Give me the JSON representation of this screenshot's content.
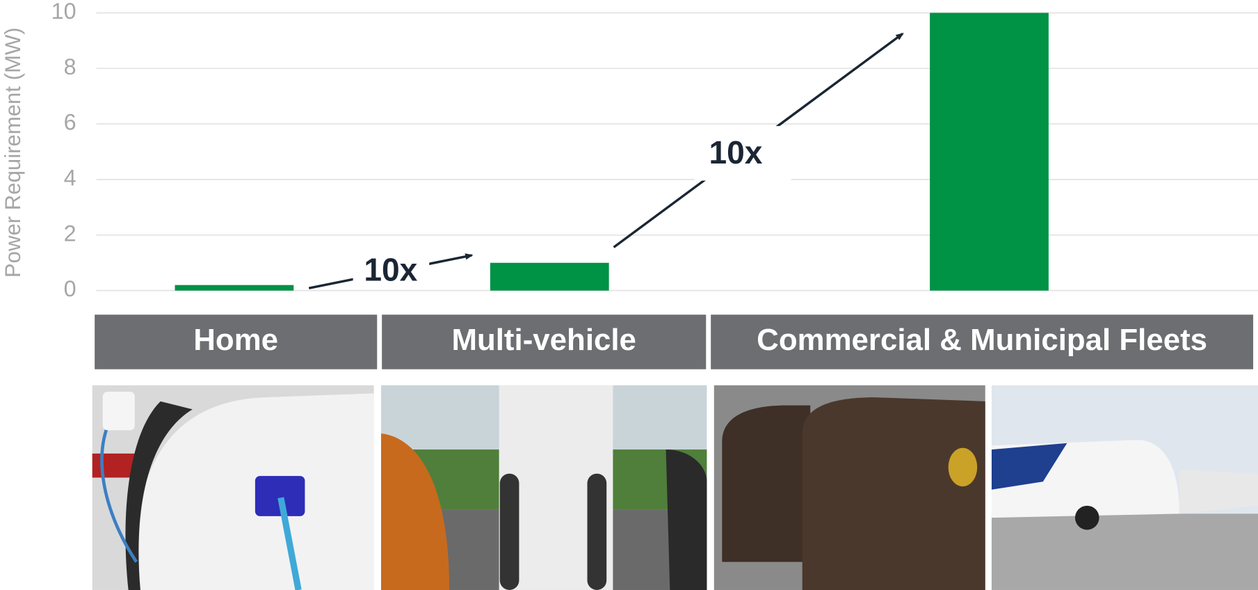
{
  "chart_data": {
    "type": "bar",
    "y_label": "Power Requirement (MW)",
    "categories": [
      "Home",
      "Multi-vehicle",
      "Commercial & Municipal Fleets"
    ],
    "values": [
      0.2,
      1,
      10
    ],
    "color": "#009245",
    "ylim": [
      0,
      10
    ],
    "yticks": [
      0,
      2,
      4,
      6,
      8,
      10
    ],
    "grid": true,
    "annotations": [
      "10x",
      "10x"
    ]
  }
}
